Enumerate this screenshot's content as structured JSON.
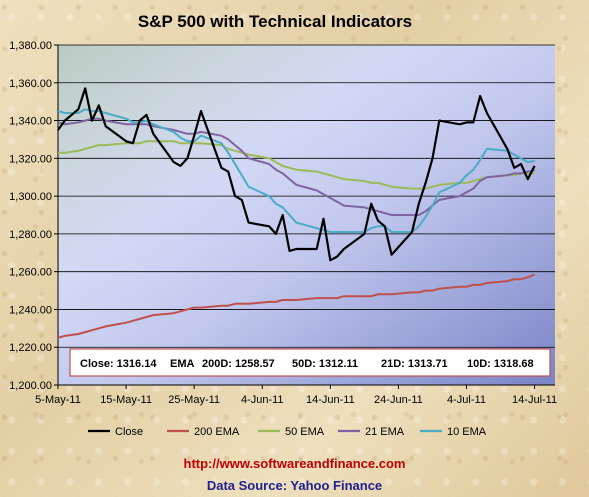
{
  "chart_data": {
    "type": "line",
    "title": "S&P 500 with Technical Indicators",
    "x_tick_labels": [
      "5-May-11",
      "15-May-11",
      "25-May-11",
      "4-Jun-11",
      "14-Jun-11",
      "24-Jun-11",
      "4-Jul-11",
      "14-Jul-11"
    ],
    "x_tick_days": [
      0,
      10,
      20,
      30,
      40,
      50,
      60,
      70
    ],
    "x_start_label": "5-May-11",
    "xlim_days": [
      0,
      73
    ],
    "ylim": [
      1200,
      1380
    ],
    "y_ticks": [
      "1,200.00",
      "1,220.00",
      "1,240.00",
      "1,260.00",
      "1,280.00",
      "1,300.00",
      "1,320.00",
      "1,340.00",
      "1,360.00",
      "1,380.00"
    ],
    "y_tick_values": [
      1200,
      1220,
      1240,
      1260,
      1280,
      1300,
      1320,
      1340,
      1360,
      1380
    ],
    "grid": "horizontal",
    "legend_position": "bottom",
    "colors": {
      "Close": "#000000",
      "200 EMA": "#c0504d",
      "50 EMA": "#9bbb59",
      "21 EMA": "#8064a2",
      "10 EMA": "#4bacc6",
      "plot_bg_start": "#eef4ff",
      "plot_bg_end": "#7b85c7"
    },
    "x_days": [
      0,
      1,
      3,
      4,
      5,
      6,
      7,
      10,
      11,
      12,
      13,
      14,
      17,
      18,
      19,
      20,
      21,
      24,
      25,
      26,
      27,
      28,
      31,
      32,
      33,
      34,
      35,
      38,
      39,
      40,
      41,
      42,
      45,
      46,
      47,
      48,
      49,
      52,
      53,
      54,
      55,
      56,
      59,
      60,
      61,
      62,
      63,
      66,
      67,
      68,
      69,
      70
    ],
    "series": [
      {
        "name": "Close",
        "values": [
          1335,
          1340,
          1346,
          1357,
          1340,
          1348,
          1337,
          1329,
          1328,
          1340,
          1343,
          1333,
          1318,
          1316,
          1320,
          1332,
          1345,
          1315,
          1313,
          1300,
          1298,
          1286,
          1284,
          1280,
          1290,
          1271,
          1272,
          1272,
          1288,
          1266,
          1268,
          1272,
          1280,
          1296,
          1287,
          1284,
          1269,
          1281,
          1296,
          1307,
          1320,
          1340,
          1338,
          1339,
          1339,
          1353,
          1344,
          1325,
          1315,
          1317,
          1309,
          1316
        ]
      },
      {
        "name": "200 EMA",
        "values": [
          1225,
          1226,
          1227,
          1228,
          1229,
          1230,
          1231,
          1233,
          1234,
          1235,
          1236,
          1237,
          1238,
          1239,
          1240,
          1241,
          1241,
          1242,
          1242,
          1243,
          1243,
          1243,
          1244,
          1244,
          1245,
          1245,
          1245,
          1246,
          1246,
          1246,
          1246,
          1247,
          1247,
          1247,
          1248,
          1248,
          1248,
          1249,
          1249,
          1250,
          1250,
          1251,
          1252,
          1252,
          1253,
          1253,
          1254,
          1255,
          1256,
          1256,
          1257,
          1258.57
        ]
      },
      {
        "name": "50 EMA",
        "values": [
          1323,
          1323,
          1324,
          1325,
          1326,
          1327,
          1327,
          1328,
          1328,
          1328,
          1329,
          1329,
          1329,
          1328,
          1328,
          1328,
          1328,
          1327,
          1325,
          1324,
          1323,
          1322,
          1320,
          1318,
          1316,
          1315,
          1314,
          1313,
          1312,
          1311,
          1310,
          1309,
          1308,
          1307,
          1307,
          1306,
          1305,
          1304,
          1304,
          1304,
          1305,
          1306,
          1307,
          1307,
          1308,
          1309,
          1310,
          1311,
          1311,
          1312,
          1312,
          1312.11
        ]
      },
      {
        "name": "21 EMA",
        "values": [
          1339,
          1338,
          1339,
          1340,
          1341,
          1341,
          1340,
          1338,
          1338,
          1338,
          1338,
          1337,
          1335,
          1334,
          1333,
          1333,
          1334,
          1332,
          1330,
          1327,
          1324,
          1320,
          1317,
          1314,
          1312,
          1309,
          1306,
          1303,
          1301,
          1299,
          1297,
          1295,
          1294,
          1293,
          1292,
          1291,
          1290,
          1290,
          1290,
          1292,
          1295,
          1298,
          1300,
          1302,
          1304,
          1308,
          1310,
          1311,
          1312,
          1312,
          1313,
          1313.71
        ]
      },
      {
        "name": "10 EMA",
        "values": [
          1345,
          1344,
          1344,
          1346,
          1345,
          1345,
          1344,
          1341,
          1339,
          1339,
          1340,
          1338,
          1334,
          1331,
          1329,
          1329,
          1332,
          1328,
          1323,
          1317,
          1311,
          1305,
          1300,
          1296,
          1294,
          1290,
          1286,
          1283,
          1282,
          1281,
          1281,
          1281,
          1281,
          1283,
          1284,
          1284,
          1281,
          1281,
          1284,
          1289,
          1295,
          1302,
          1307,
          1311,
          1314,
          1319,
          1325,
          1324,
          1322,
          1320,
          1318,
          1318.68
        ]
      }
    ],
    "summary": {
      "close": "Close: 1316.14",
      "ema_label": "EMA",
      "ema_200": "200D: 1258.57",
      "ema_50": "50D: 1312.11",
      "ema_21": "21D: 1313.71",
      "ema_10": "10D: 1318.68"
    }
  },
  "footer": {
    "url": "http://www.softwareandfinance.com",
    "source": "Data Source: Yahoo Finance"
  }
}
